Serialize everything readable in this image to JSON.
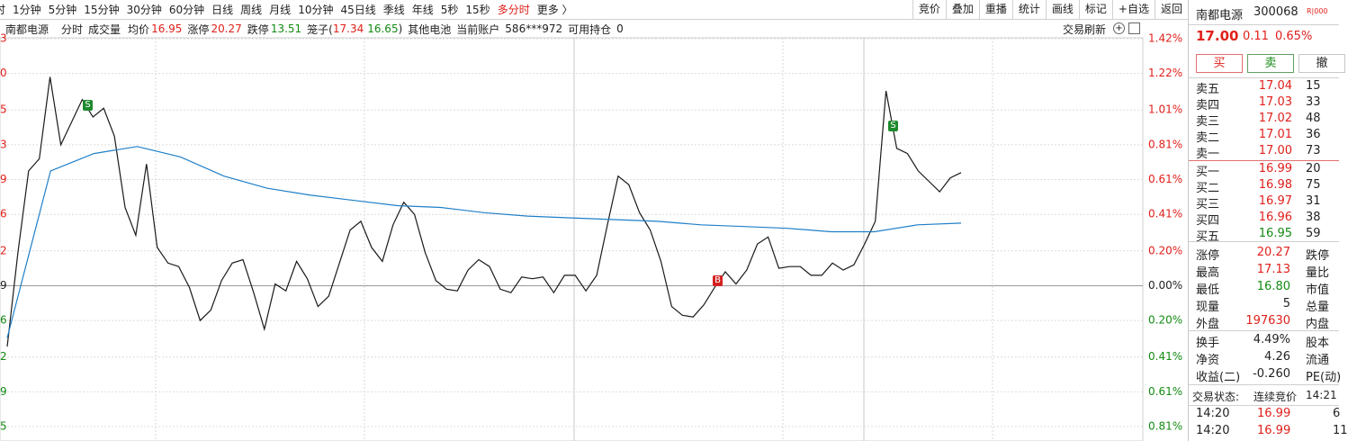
{
  "toolbar": {
    "periods": [
      "时",
      "1分钟",
      "5分钟",
      "15分钟",
      "30分钟",
      "60分钟",
      "日线",
      "周线",
      "月线",
      "10分钟",
      "45日线",
      "季线",
      "年线",
      "5秒",
      "15秒",
      "多分时",
      "更多 〉"
    ],
    "active": "多分时",
    "buttons": [
      "竞价",
      "叠加",
      "重播",
      "统计",
      "画线",
      "标记",
      "+自选",
      "返回"
    ]
  },
  "infobar": {
    "name": "南都电源",
    "mode": "分时",
    "indicator": "成交量",
    "avg_label": "均价",
    "avg_value": "16.95",
    "limit_up_label": "涨停",
    "limit_up_value": "20.27",
    "limit_down_label": "跌停",
    "limit_down_value": "13.51",
    "cage_label": "笼子(",
    "cage_high": "17.34",
    "cage_low": "16.65",
    "cage_close": ")",
    "sector": "其他电池",
    "account_label": "当前账户",
    "account": "586***972",
    "position_label": "可用持仓",
    "position": "0",
    "refresh": "交易刷新"
  },
  "left_axis_fragments": [
    "3",
    "0",
    "5",
    "3",
    "9",
    "6",
    "2",
    "9",
    "6",
    "2",
    "9",
    "5"
  ],
  "chart_data": {
    "type": "line",
    "ylim": [
      -0.81,
      1.42
    ],
    "yticks": [
      {
        "value": 1.42,
        "label": "1.42%"
      },
      {
        "value": 1.22,
        "label": "1.22%"
      },
      {
        "value": 1.01,
        "label": "1.01%"
      },
      {
        "value": 0.81,
        "label": "0.81%"
      },
      {
        "value": 0.61,
        "label": "0.61%"
      },
      {
        "value": 0.41,
        "label": "0.41%"
      },
      {
        "value": 0.2,
        "label": "0.20%"
      },
      {
        "value": 0,
        "label": "0.00%"
      },
      {
        "value": -0.2,
        "label": "0.20%"
      },
      {
        "value": -0.41,
        "label": "0.41%"
      },
      {
        "value": -0.61,
        "label": "0.61%"
      },
      {
        "value": -0.81,
        "label": "0.81%"
      }
    ],
    "grid": true,
    "series": [
      {
        "color": "#1a1a1a",
        "values": [
          -0.35,
          0.19,
          0.66,
          0.73,
          1.2,
          0.81,
          0.94,
          1.07,
          0.97,
          1.02,
          0.86,
          0.45,
          0.29,
          0.7,
          0.22,
          0.13,
          0.11,
          -0.01,
          -0.2,
          -0.14,
          0.03,
          0.13,
          0.15,
          -0.04,
          -0.25,
          0.01,
          -0.03,
          0.14,
          0.04,
          -0.12,
          -0.06,
          0.13,
          0.32,
          0.37,
          0.22,
          0.14,
          0.35,
          0.48,
          0.41,
          0.19,
          0.03,
          -0.02,
          -0.03,
          0.09,
          0.15,
          0.11,
          -0.02,
          -0.04,
          0.05,
          0.04,
          0.05,
          -0.04,
          0.06,
          0.06,
          -0.03,
          0.06,
          0.35,
          0.63,
          0.58,
          0.42,
          0.32,
          0.14,
          -0.12,
          -0.17,
          -0.18,
          -0.11,
          -0.01,
          0.08,
          0.01,
          0.09,
          0.24,
          0.28,
          0.1,
          0.11,
          0.11,
          0.06,
          0.06,
          0.13,
          0.09,
          0.12,
          0.24,
          0.37,
          1.12,
          0.79,
          0.76,
          0.66,
          0.6,
          0.54,
          0.62,
          0.65
        ]
      },
      {
        "color": "#1f7fc8",
        "values": [
          -0.3,
          0.66,
          0.76,
          0.8,
          0.74,
          0.63,
          0.56,
          0.52,
          0.49,
          0.46,
          0.45,
          0.42,
          0.4,
          0.39,
          0.38,
          0.37,
          0.35,
          0.34,
          0.33,
          0.31,
          0.31,
          0.35,
          0.36
        ]
      }
    ]
  },
  "trade_marks": [
    "S",
    "B",
    "S"
  ],
  "quote": {
    "name": "南都电源",
    "code": "300068",
    "badge": "R|000",
    "price": "17.00",
    "change": "0.11",
    "change_pct": "0.65%",
    "buttons": [
      "买",
      "卖",
      "撤"
    ]
  },
  "order_book": {
    "asks": [
      [
        "卖五",
        "17.04",
        "15"
      ],
      [
        "卖四",
        "17.03",
        "33"
      ],
      [
        "卖三",
        "17.02",
        "48"
      ],
      [
        "卖二",
        "17.01",
        "36"
      ],
      [
        "卖一",
        "17.00",
        "73"
      ]
    ],
    "bids": [
      [
        "买一",
        "16.99",
        "20"
      ],
      [
        "买二",
        "16.98",
        "75"
      ],
      [
        "买三",
        "16.97",
        "31"
      ],
      [
        "买四",
        "16.96",
        "38"
      ],
      [
        "买五",
        "16.95",
        "59"
      ]
    ]
  },
  "stats": [
    [
      "涨停",
      "20.27",
      "跌停"
    ],
    [
      "最高",
      "17.13",
      "量比"
    ],
    [
      "最低",
      "16.80",
      "市值"
    ],
    [
      "现量",
      "5",
      "总量"
    ],
    [
      "外盘",
      "197630",
      "内盘"
    ]
  ],
  "stats2": [
    [
      "换手",
      "4.49%",
      "股本"
    ],
    [
      "净资",
      "4.26",
      "流通"
    ],
    [
      "收益(二)",
      "-0.260",
      "PE(动)"
    ]
  ],
  "status": {
    "label": "交易状态:",
    "value": "连续竞价",
    "time": "14:21"
  },
  "ticks": [
    [
      "14:20",
      "16.99",
      "6"
    ],
    [
      "14:20",
      "16.99",
      "11"
    ]
  ]
}
